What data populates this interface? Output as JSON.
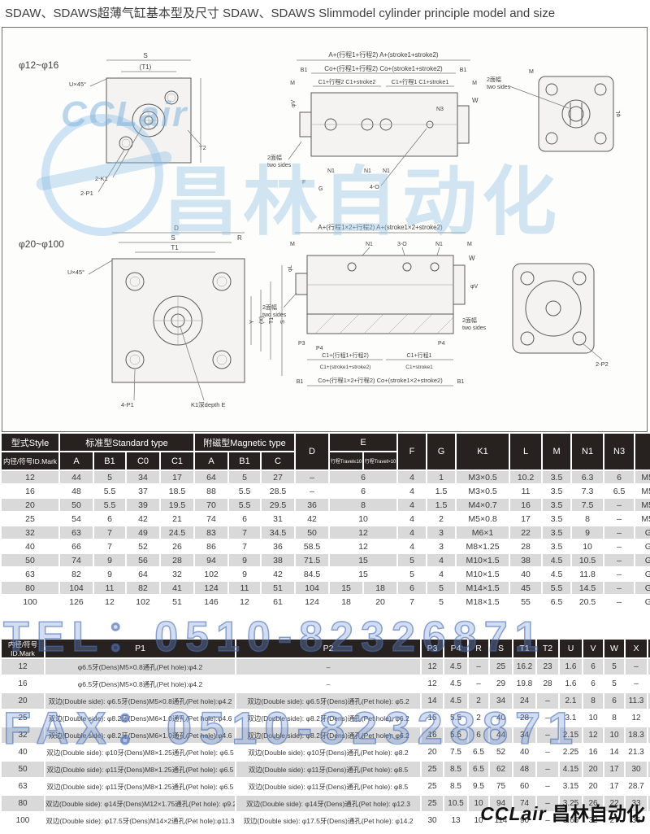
{
  "title": "SDAW、SDAWS超薄气缸基本型及尺寸 SDAW、SDAWS  Slimmodel cylinder principle model and size",
  "watermark": {
    "tel": "TEL：0510-82326871",
    "fax": "FAX：0510-82328871",
    "brand_latin": "CCLair",
    "brand_cn": "昌林自动化"
  },
  "footer_logo": {
    "latin": "CCLair",
    "cn": "昌林自动化"
  },
  "drawings": {
    "top": {
      "range": "φ12~φ16",
      "dimA": "A+(行程1+行程2)  A+(stroke1+stroke2)",
      "b1": "B1",
      "co": "Co+(行程1+行程2) Co+(stroke1+stroke2)",
      "m": "M",
      "c1s2": "C1+行程2 C1+stroke2",
      "c1s1": "C1+行程1 C1+stroke1",
      "s": "S",
      "t1": "(T1)",
      "u45": "U×45°",
      "k1": "2-K1",
      "p1": "2-P1",
      "t2": "T2",
      "v": "φV",
      "n3": "N3",
      "w": "W",
      "n1": "N1",
      "f": "F",
      "g": "G",
      "o4": "4-O",
      "ts1": "2面幅",
      "ts2": "two sides",
      "l": "φL"
    },
    "bottom": {
      "range": "φ20~φ100",
      "dimA": "A+(行程1×2+行程2)  A+(stroke1×2+stroke2)",
      "d": "D",
      "s": "S",
      "r": "R",
      "t1": "T1",
      "u45": "U×45°",
      "y": "Y",
      "x": "(X)",
      "t1r": "T1",
      "sr": "S",
      "p1": "4-P1",
      "k1e": "K1深depth E",
      "m": "M",
      "n1": "N1",
      "o3": "3-O",
      "w": "W",
      "ts1": "2面幅",
      "ts2": "two sides",
      "p3": "P3",
      "p4": "P4",
      "c1b": "C1+(行程1+行程2)",
      "c1b2": "C1+(stroke1+stroke2)",
      "c1a": "C1+行程1",
      "c1a2": "C1+stroke1",
      "b1": "B1",
      "co": "Co+(行程1×2+行程2) Co+(stroke1×2+stroke2)",
      "p2": "2-P2",
      "l": "φL",
      "v": "φV"
    }
  },
  "table1": {
    "style_header": "型式Style",
    "id_header": "内径/符号ID.Mark",
    "std_group": "标准型Standard type",
    "mag_group": "附磁型Magnetic type",
    "cols_std": [
      "A",
      "B1",
      "C0",
      "C1"
    ],
    "cols_mag": [
      "A",
      "B1",
      "C"
    ],
    "col_d": "D",
    "col_e": "E",
    "e_sub": [
      "行程Travel≤10",
      "行程Travel>10"
    ],
    "cols_rest": [
      "F",
      "G",
      "K1",
      "L",
      "M",
      "N1",
      "N3",
      "O"
    ],
    "rows": [
      [
        "12",
        "44",
        "5",
        "34",
        "17",
        "64",
        "5",
        "27",
        "–",
        {
          "v": "6",
          "span": 2
        },
        "4",
        "1",
        "M3×0.5",
        "10.2",
        "3.5",
        "6.3",
        "6",
        "M5×0.8"
      ],
      [
        "16",
        "48",
        "5.5",
        "37",
        "18.5",
        "88",
        "5.5",
        "28.5",
        "–",
        {
          "v": "6",
          "span": 2
        },
        "4",
        "1.5",
        "M3×0.5",
        "11",
        "3.5",
        "7.3",
        "6.5",
        "M5×0.8"
      ],
      [
        "20",
        "50",
        "5.5",
        "39",
        "19.5",
        "70",
        "5.5",
        "29.5",
        "36",
        {
          "v": "8",
          "span": 2
        },
        "4",
        "1.5",
        "M4×0.7",
        "16",
        "3.5",
        "7.5",
        "–",
        "M5×0.8"
      ],
      [
        "25",
        "54",
        "6",
        "42",
        "21",
        "74",
        "6",
        "31",
        "42",
        {
          "v": "10",
          "span": 2
        },
        "4",
        "2",
        "M5×0.8",
        "17",
        "3.5",
        "8",
        "–",
        "M5×0.8"
      ],
      [
        "32",
        "63",
        "7",
        "49",
        "24.5",
        "83",
        "7",
        "34.5",
        "50",
        {
          "v": "12",
          "span": 2
        },
        "4",
        "3",
        "M6×1",
        "22",
        "3.5",
        "9",
        "–",
        "G1/8\""
      ],
      [
        "40",
        "66",
        "7",
        "52",
        "26",
        "86",
        "7",
        "36",
        "58.5",
        {
          "v": "12",
          "span": 2
        },
        "4",
        "3",
        "M8×1.25",
        "28",
        "3.5",
        "10",
        "–",
        "G1/8\""
      ],
      [
        "50",
        "74",
        "9",
        "56",
        "28",
        "94",
        "9",
        "38",
        "71.5",
        {
          "v": "15",
          "span": 2
        },
        "5",
        "4",
        "M10×1.5",
        "38",
        "4.5",
        "10.5",
        "–",
        "G1/4\""
      ],
      [
        "63",
        "82",
        "9",
        "64",
        "32",
        "102",
        "9",
        "42",
        "84.5",
        {
          "v": "15",
          "span": 2
        },
        "5",
        "4",
        "M10×1.5",
        "40",
        "4.5",
        "11.8",
        "–",
        "G1/4\""
      ],
      [
        "80",
        "104",
        "11",
        "82",
        "41",
        "124",
        "11",
        "51",
        "104",
        "15",
        "18",
        "6",
        "5",
        "M14×1.5",
        "45",
        "5.5",
        "14.5",
        "–",
        "G3/8\""
      ],
      [
        "100",
        "126",
        "12",
        "102",
        "51",
        "146",
        "12",
        "61",
        "124",
        "18",
        "20",
        "7",
        "5",
        "M18×1.5",
        "55",
        "6.5",
        "20.5",
        "–",
        "G3/8\""
      ]
    ]
  },
  "table2": {
    "id_header": "内径/符号ID.Mark",
    "cols": [
      "P1",
      "P2",
      "P3",
      "P4",
      "R",
      "S",
      "T1",
      "T2",
      "U",
      "V",
      "W",
      "X",
      "Y"
    ],
    "rows": [
      [
        "12",
        "φ6.5牙(Dens)M5×0.8通孔(Pet hole):φ4.2",
        "–",
        "12",
        "4.5",
        "–",
        "25",
        "16.2",
        "23",
        "1.6",
        "6",
        "5",
        "–",
        "–"
      ],
      [
        "16",
        "φ6.5牙(Dens)M5×0.8通孔(Pet hole):φ4.2",
        "–",
        "12",
        "4.5",
        "–",
        "29",
        "19.8",
        "28",
        "1.6",
        "6",
        "5",
        "–",
        "–"
      ],
      [
        "20",
        "双边(Double side): φ6.5牙(Dens)M5×0.8通孔(Pet hole):φ4.2",
        "双边(Double side): φ6.5牙(Dens)通孔(Pet hole): φ5.2",
        "14",
        "4.5",
        "2",
        "34",
        "24",
        "–",
        "2.1",
        "8",
        "6",
        "11.3",
        "10"
      ],
      [
        "25",
        "双边(Double side): φ8.2牙(Dens)M6×1.0通孔(Pet hole):φ4.6",
        "双边(Double side): φ8.2牙(Dens)通孔(Pet hole): φ6.2",
        "15",
        "5.5",
        "2",
        "40",
        "28",
        "–",
        "3.1",
        "10",
        "8",
        "12",
        "10"
      ],
      [
        "32",
        "双边(Double side): φ8.2牙(Dens)M6×1.0通孔(Pet hole):φ4.6",
        "双边(Double side): φ8.2牙(Dens)通孔(Pet hole): φ6.2",
        "16",
        "5.5",
        "6",
        "44",
        "34",
        "–",
        "2.15",
        "12",
        "10",
        "18.3",
        "15"
      ],
      [
        "40",
        "双边(Double side): φ10牙(Dens)M8×1.25通孔(Pet hole): φ6.5",
        "双边(Double side): φ10牙(Dens)通孔(Pet hole): φ8.2",
        "20",
        "7.5",
        "6.5",
        "52",
        "40",
        "–",
        "2.25",
        "16",
        "14",
        "21.3",
        "16"
      ],
      [
        "50",
        "双边(Double side): φ11牙(Dens)M8×1.25通孔(Pet hole): φ6.5",
        "双边(Double side): φ11牙(Dens)通孔(Pet hole): φ8.5",
        "25",
        "8.5",
        "6.5",
        "62",
        "48",
        "–",
        "4.15",
        "20",
        "17",
        "30",
        "20"
      ],
      [
        "63",
        "双边(Double side): φ11牙(Dens)M8×1.25通孔(Pet hole): φ6.5",
        "双边(Double side): φ11牙(Dens)通孔(Pet hole): φ8.5",
        "25",
        "8.5",
        "9.5",
        "75",
        "60",
        "–",
        "3.15",
        "20",
        "17",
        "28.7",
        "20"
      ],
      [
        "80",
        "双边(Double side): φ14牙(Dens)M12×1.75通孔(Pet hole): φ9.2",
        "双边(Double side): φ14牙(Dens)通孔(Pet hole): φ12.3",
        "25",
        "10.5",
        "10",
        "94",
        "74",
        "–",
        "3.25",
        "26",
        "22",
        "33",
        "26"
      ],
      [
        "100",
        "双边(Double side): φ17.5牙(Dens)M14×2通孔(Pet hole):φ11.3",
        "双边(Double side): φ17.5牙(Dens)通孔(Pet hole): φ14.2",
        "30",
        "13",
        "10",
        "114",
        "90",
        "–",
        "3.65",
        "32",
        "27",
        "35",
        "26"
      ]
    ]
  }
}
